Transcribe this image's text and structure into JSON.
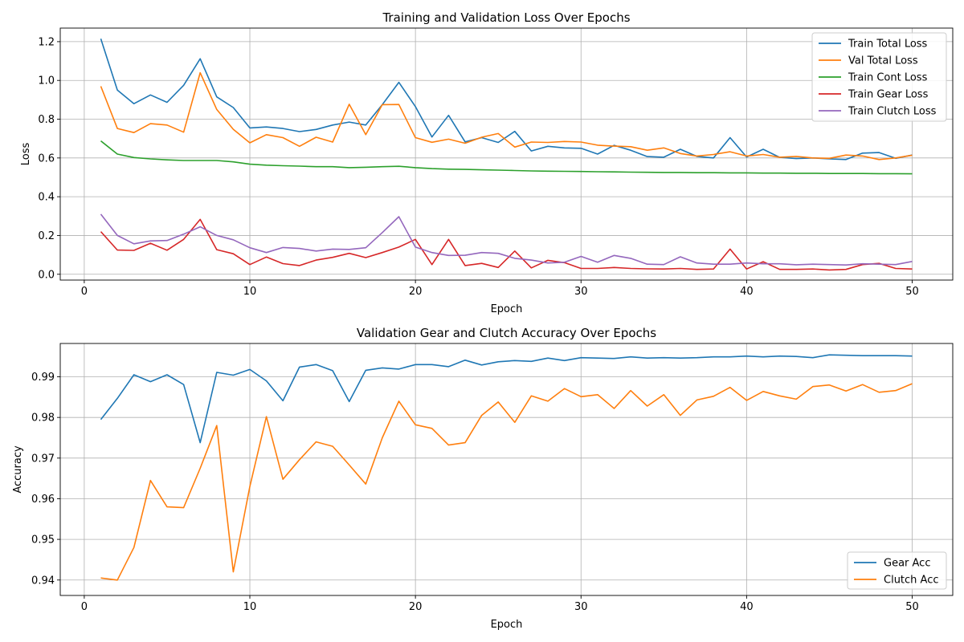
{
  "chart_data": [
    {
      "type": "line",
      "title": "Training and Validation Loss Over Epochs",
      "xlabel": "Epoch",
      "ylabel": "Loss",
      "xlim": [
        -1.45,
        52.45
      ],
      "ylim": [
        -0.03,
        1.27
      ],
      "xticks": [
        0,
        10,
        20,
        30,
        40,
        50
      ],
      "xtick_labels": [
        "0",
        "10",
        "20",
        "30",
        "40",
        "50"
      ],
      "yticks": [
        0.0,
        0.2,
        0.4,
        0.6,
        0.8,
        1.0,
        1.2
      ],
      "ytick_labels": [
        "0.0",
        "0.2",
        "0.4",
        "0.6",
        "0.8",
        "1.0",
        "1.2"
      ],
      "grid": true,
      "legend_position": "top-right",
      "x": [
        1,
        2,
        3,
        4,
        5,
        6,
        7,
        8,
        9,
        10,
        11,
        12,
        13,
        14,
        15,
        16,
        17,
        18,
        19,
        20,
        21,
        22,
        23,
        24,
        25,
        26,
        27,
        28,
        29,
        30,
        31,
        32,
        33,
        34,
        35,
        36,
        37,
        38,
        39,
        40,
        41,
        42,
        43,
        44,
        45,
        46,
        47,
        48,
        49,
        50
      ],
      "series": [
        {
          "name": "Train Total Loss",
          "color": "#1f77b4",
          "values": [
            1.215,
            0.95,
            0.88,
            0.925,
            0.887,
            0.975,
            1.112,
            0.915,
            0.86,
            0.755,
            0.76,
            0.752,
            0.736,
            0.747,
            0.77,
            0.785,
            0.77,
            0.875,
            0.99,
            0.865,
            0.708,
            0.82,
            0.683,
            0.705,
            0.68,
            0.737,
            0.636,
            0.66,
            0.652,
            0.65,
            0.62,
            0.665,
            0.64,
            0.607,
            0.604,
            0.645,
            0.608,
            0.6,
            0.705,
            0.605,
            0.645,
            0.603,
            0.597,
            0.6,
            0.595,
            0.592,
            0.625,
            0.628,
            0.598,
            0.615
          ]
        },
        {
          "name": "Val Total Loss",
          "color": "#ff7f0e",
          "values": [
            0.97,
            0.752,
            0.731,
            0.777,
            0.77,
            0.733,
            1.04,
            0.85,
            0.748,
            0.678,
            0.72,
            0.705,
            0.66,
            0.707,
            0.682,
            0.877,
            0.72,
            0.875,
            0.876,
            0.705,
            0.681,
            0.697,
            0.676,
            0.707,
            0.726,
            0.656,
            0.682,
            0.68,
            0.685,
            0.682,
            0.666,
            0.661,
            0.658,
            0.64,
            0.652,
            0.623,
            0.61,
            0.618,
            0.632,
            0.61,
            0.618,
            0.604,
            0.608,
            0.6,
            0.598,
            0.615,
            0.61,
            0.592,
            0.6,
            0.614
          ]
        },
        {
          "name": "Train Cont Loss",
          "color": "#2ca02c",
          "values": [
            0.688,
            0.62,
            0.602,
            0.595,
            0.59,
            0.587,
            0.587,
            0.587,
            0.58,
            0.568,
            0.563,
            0.56,
            0.558,
            0.555,
            0.555,
            0.55,
            0.552,
            0.555,
            0.557,
            0.55,
            0.545,
            0.542,
            0.541,
            0.539,
            0.537,
            0.535,
            0.533,
            0.532,
            0.531,
            0.53,
            0.529,
            0.528,
            0.527,
            0.526,
            0.525,
            0.525,
            0.524,
            0.524,
            0.523,
            0.523,
            0.522,
            0.522,
            0.521,
            0.521,
            0.52,
            0.52,
            0.52,
            0.519,
            0.519,
            0.518
          ]
        },
        {
          "name": "Train Gear Loss",
          "color": "#d62728",
          "values": [
            0.22,
            0.125,
            0.123,
            0.16,
            0.124,
            0.18,
            0.283,
            0.127,
            0.106,
            0.05,
            0.089,
            0.055,
            0.045,
            0.073,
            0.087,
            0.108,
            0.086,
            0.112,
            0.14,
            0.18,
            0.05,
            0.18,
            0.045,
            0.056,
            0.035,
            0.12,
            0.033,
            0.072,
            0.06,
            0.03,
            0.03,
            0.035,
            0.03,
            0.028,
            0.027,
            0.03,
            0.025,
            0.027,
            0.13,
            0.027,
            0.065,
            0.025,
            0.025,
            0.027,
            0.022,
            0.025,
            0.05,
            0.056,
            0.03,
            0.027
          ]
        },
        {
          "name": "Train Clutch Loss",
          "color": "#9467bd",
          "values": [
            0.31,
            0.2,
            0.157,
            0.172,
            0.174,
            0.207,
            0.245,
            0.2,
            0.178,
            0.137,
            0.112,
            0.138,
            0.133,
            0.12,
            0.13,
            0.128,
            0.137,
            0.215,
            0.297,
            0.14,
            0.112,
            0.097,
            0.098,
            0.112,
            0.108,
            0.082,
            0.073,
            0.058,
            0.062,
            0.092,
            0.062,
            0.097,
            0.082,
            0.052,
            0.05,
            0.09,
            0.058,
            0.052,
            0.052,
            0.058,
            0.054,
            0.054,
            0.049,
            0.052,
            0.05,
            0.048,
            0.054,
            0.052,
            0.05,
            0.066
          ]
        }
      ]
    },
    {
      "type": "line",
      "title": "Validation Gear and Clutch Accuracy Over Epochs",
      "xlabel": "Epoch",
      "ylabel": "Accuracy",
      "xlim": [
        -1.45,
        52.45
      ],
      "ylim": [
        0.9362,
        0.9982
      ],
      "xticks": [
        0,
        10,
        20,
        30,
        40,
        50
      ],
      "xtick_labels": [
        "0",
        "10",
        "20",
        "30",
        "40",
        "50"
      ],
      "yticks": [
        0.94,
        0.95,
        0.96,
        0.97,
        0.98,
        0.99
      ],
      "ytick_labels": [
        "0.94",
        "0.95",
        "0.96",
        "0.97",
        "0.98",
        "0.99"
      ],
      "grid": true,
      "legend_position": "bottom-right",
      "x": [
        1,
        2,
        3,
        4,
        5,
        6,
        7,
        8,
        9,
        10,
        11,
        12,
        13,
        14,
        15,
        16,
        17,
        18,
        19,
        20,
        21,
        22,
        23,
        24,
        25,
        26,
        27,
        28,
        29,
        30,
        31,
        32,
        33,
        34,
        35,
        36,
        37,
        38,
        39,
        40,
        41,
        42,
        43,
        44,
        45,
        46,
        47,
        48,
        49,
        50
      ],
      "series": [
        {
          "name": "Gear Acc",
          "color": "#1f77b4",
          "values": [
            0.9795,
            0.9847,
            0.9905,
            0.9888,
            0.9905,
            0.9881,
            0.9738,
            0.9911,
            0.9904,
            0.9918,
            0.989,
            0.9841,
            0.9924,
            0.993,
            0.9915,
            0.9839,
            0.9916,
            0.9922,
            0.9919,
            0.993,
            0.993,
            0.9925,
            0.9941,
            0.9929,
            0.9937,
            0.994,
            0.9938,
            0.9946,
            0.994,
            0.9947,
            0.9946,
            0.9945,
            0.9949,
            0.9946,
            0.9947,
            0.9946,
            0.9947,
            0.9949,
            0.9949,
            0.9951,
            0.9949,
            0.9951,
            0.995,
            0.9947,
            0.9954,
            0.9953,
            0.9952,
            0.9952,
            0.9952,
            0.9951
          ]
        },
        {
          "name": "Clutch Acc",
          "color": "#ff7f0e",
          "values": [
            0.9405,
            0.94,
            0.948,
            0.9645,
            0.958,
            0.9578,
            0.9675,
            0.978,
            0.942,
            0.963,
            0.9802,
            0.9648,
            0.9696,
            0.974,
            0.9729,
            0.9683,
            0.9636,
            0.975,
            0.984,
            0.9782,
            0.9773,
            0.9732,
            0.9738,
            0.9805,
            0.9838,
            0.9788,
            0.9853,
            0.984,
            0.9871,
            0.9851,
            0.9856,
            0.9822,
            0.9866,
            0.9828,
            0.9856,
            0.9805,
            0.9843,
            0.9852,
            0.9874,
            0.9842,
            0.9864,
            0.9853,
            0.9845,
            0.9876,
            0.988,
            0.9865,
            0.9881,
            0.9862,
            0.9866,
            0.9883
          ]
        }
      ]
    }
  ]
}
